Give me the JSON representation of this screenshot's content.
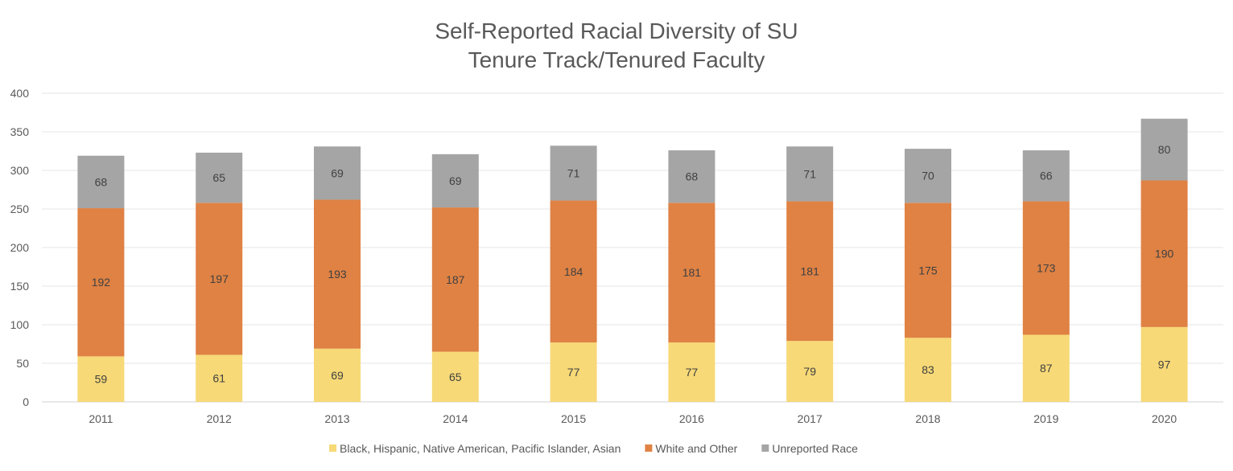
{
  "chart_data": {
    "type": "bar",
    "stacked": true,
    "title": [
      "Self-Reported Racial Diversity of SU",
      "Tenure Track/Tenured Faculty"
    ],
    "xlabel": "",
    "ylabel": "",
    "ylim": [
      0,
      400
    ],
    "yticks": [
      0,
      50,
      100,
      150,
      200,
      250,
      300,
      350,
      400
    ],
    "grid": true,
    "legend_position": "bottom",
    "categories": [
      "2011",
      "2012",
      "2013",
      "2014",
      "2015",
      "2016",
      "2017",
      "2018",
      "2019",
      "2020"
    ],
    "series": [
      {
        "name": "Black, Hispanic, Native American, Pacific Islander, Asian",
        "color": "#F7D977",
        "values": [
          59,
          61,
          69,
          65,
          77,
          77,
          79,
          83,
          87,
          97
        ]
      },
      {
        "name": "White and Other",
        "color": "#DF8244",
        "values": [
          192,
          197,
          193,
          187,
          184,
          181,
          181,
          175,
          173,
          190
        ]
      },
      {
        "name": "Unreported Race",
        "color": "#A5A5A5",
        "values": [
          68,
          65,
          69,
          69,
          71,
          68,
          71,
          70,
          66,
          80
        ]
      }
    ]
  }
}
